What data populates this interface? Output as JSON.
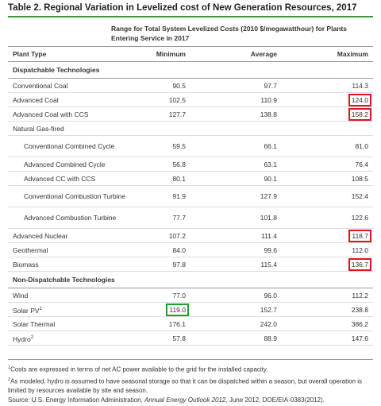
{
  "header": {
    "title": "Table 2. Regional Variation in Levelized cost of New Generation Resources, 2017",
    "range": "Range for Total System Levelized Costs (2010 $/megawatthour) for Plants Entering Service in 2017"
  },
  "table": {
    "columns": [
      "Plant Type",
      "Minimum",
      "Average",
      "Maximum"
    ],
    "highlight_colors": {
      "red": "red",
      "green": "green"
    },
    "rows": [
      {
        "section": "Dispatchable Technologies"
      },
      {
        "name": "Conventional Coal",
        "values": [
          "90.5",
          "97.7",
          "114.3"
        ]
      },
      {
        "name": "Advanced Coal",
        "values": [
          "102.5",
          "110.9",
          "124.0"
        ],
        "highlight": [
          null,
          null,
          "red"
        ]
      },
      {
        "name": "Advanced Coal with CCS",
        "values": [
          "127.7",
          "138.8",
          "158.2"
        ],
        "highlight": [
          null,
          null,
          "red"
        ]
      },
      {
        "group": "Natural Gas-fired"
      },
      {
        "name": "Conventional Combined Cycle",
        "indent": true,
        "values": [
          "59.5",
          "66.1",
          "81.0"
        ]
      },
      {
        "name": "Advanced Combined Cycle",
        "indent": true,
        "values": [
          "56.8",
          "63.1",
          "76.4"
        ]
      },
      {
        "name": "Advanced CC with CCS",
        "indent": true,
        "values": [
          "80.1",
          "90.1",
          "108.5"
        ]
      },
      {
        "name": "Conventional Combustion Turbine",
        "indent": true,
        "values": [
          "91.9",
          "127.9",
          "152.4"
        ]
      },
      {
        "name": "Advanced Combustion Turbine",
        "indent": true,
        "values": [
          "77.7",
          "101.8",
          "122.6"
        ]
      },
      {
        "name": "Advanced Nuclear",
        "values": [
          "107.2",
          "111.4",
          "118.7"
        ],
        "highlight": [
          null,
          null,
          "red"
        ]
      },
      {
        "name": "Geothermal",
        "values": [
          "84.0",
          "99.6",
          "112.0"
        ]
      },
      {
        "name": "Biomass",
        "values": [
          "97.8",
          "115.4",
          "136.7"
        ],
        "highlight": [
          null,
          null,
          "red"
        ]
      },
      {
        "section": "Non-Dispatchable Technologies"
      },
      {
        "name": "Wind",
        "values": [
          "77.0",
          "96.0",
          "112.2"
        ]
      },
      {
        "name": "Solar PV",
        "note": "1",
        "values": [
          "119.0",
          "152.7",
          "238.8"
        ],
        "highlight": [
          "green",
          null,
          null
        ]
      },
      {
        "name": "Solar Thermal",
        "values": [
          "176.1",
          "242.0",
          "386.2"
        ]
      },
      {
        "name": "Hydro",
        "note": "2",
        "values": [
          "57.8",
          "88.9",
          "147.6"
        ]
      }
    ]
  },
  "footnotes": [
    {
      "mark": "1",
      "text": "Costs are expressed in terms of net AC power available to the grid for the installed capacity."
    },
    {
      "mark": "2",
      "text": "As modeled, hydro is assumed to have seasonal storage so that it can be dispatched within a season, but overall operation is limited by resources available by site and season."
    }
  ],
  "source": {
    "before": "Source: U.S. Energy Information Administration, ",
    "italic": "Annual Energy Outlook 2012",
    "after": ", June 2012, DOE/EIA-0383(2012)."
  }
}
